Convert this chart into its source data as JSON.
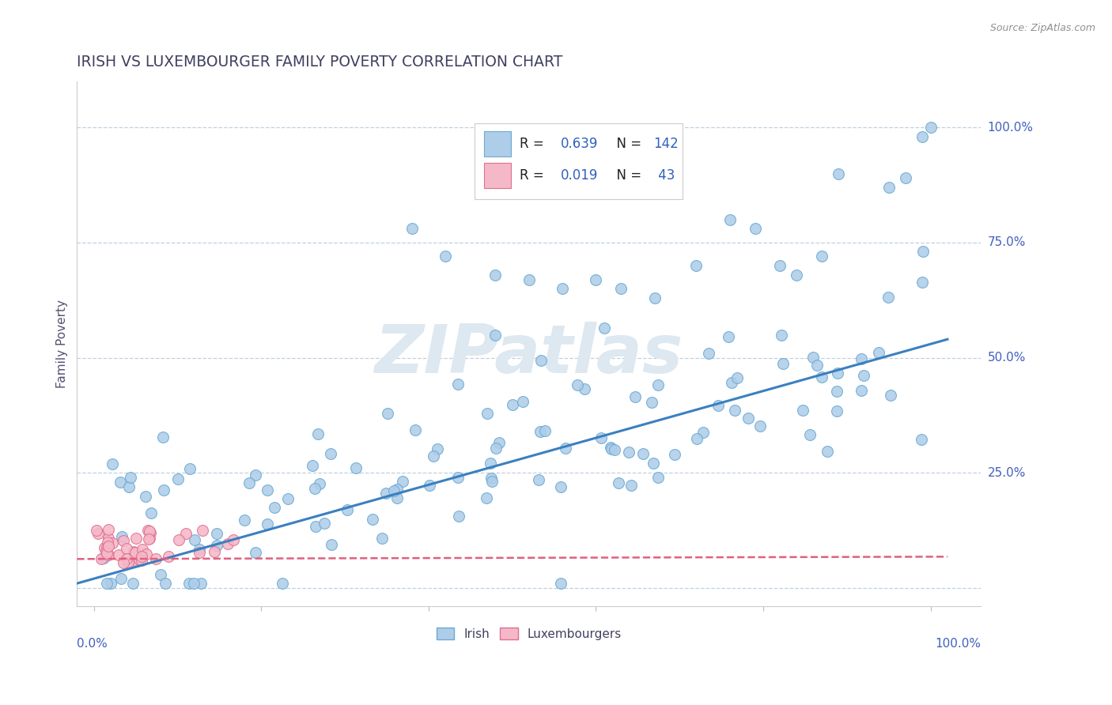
{
  "title": "IRISH VS LUXEMBOURGER FAMILY POVERTY CORRELATION CHART",
  "source": "Source: ZipAtlas.com",
  "ylabel": "Family Poverty",
  "irish_R": 0.639,
  "irish_N": 142,
  "lux_R": 0.019,
  "lux_N": 43,
  "irish_color": "#aecde8",
  "irish_edge_color": "#6aaad4",
  "irish_line_color": "#3a80c0",
  "lux_color": "#f5b8c8",
  "lux_edge_color": "#e07090",
  "lux_line_color": "#e06080",
  "background_color": "#ffffff",
  "grid_color": "#c0d0e0",
  "title_color": "#404060",
  "watermark_color": "#dde8f0",
  "axis_label_color": "#4060c0",
  "legend_text_color": "#222222",
  "legend_num_color": "#3060c0",
  "ytick_vals": [
    0.0,
    0.25,
    0.5,
    0.75,
    1.0
  ],
  "ytick_labels": [
    "",
    "25.0%",
    "50.0%",
    "75.0%",
    "100.0%"
  ]
}
